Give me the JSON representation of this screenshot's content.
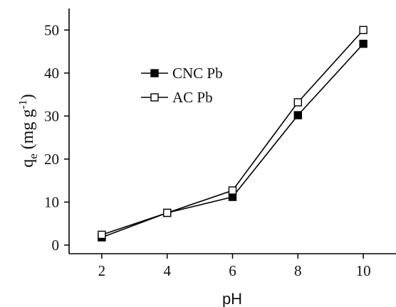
{
  "chart_data": {
    "type": "line",
    "xlabel": "pH",
    "ylabel": {
      "main": "q",
      "sub": "e",
      "unit_open": " (mg g",
      "unit_sup": "-1",
      "unit_close": ")"
    },
    "xlim": [
      1,
      11
    ],
    "ylim": [
      -2,
      55
    ],
    "xticks": [
      2,
      4,
      6,
      8,
      10
    ],
    "yticks": [
      0,
      10,
      20,
      30,
      40,
      50
    ],
    "grid": false,
    "legend_position": "upper-left",
    "x": [
      2,
      4,
      6,
      8,
      10
    ],
    "series": [
      {
        "name": "CNC Pb",
        "marker": "filled-square",
        "color": "#000000",
        "values": [
          1.8,
          7.5,
          11.2,
          30.2,
          46.8
        ]
      },
      {
        "name": "AC Pb",
        "marker": "open-square",
        "color": "#000000",
        "values": [
          2.4,
          7.5,
          12.7,
          33.2,
          50.0
        ]
      }
    ]
  }
}
